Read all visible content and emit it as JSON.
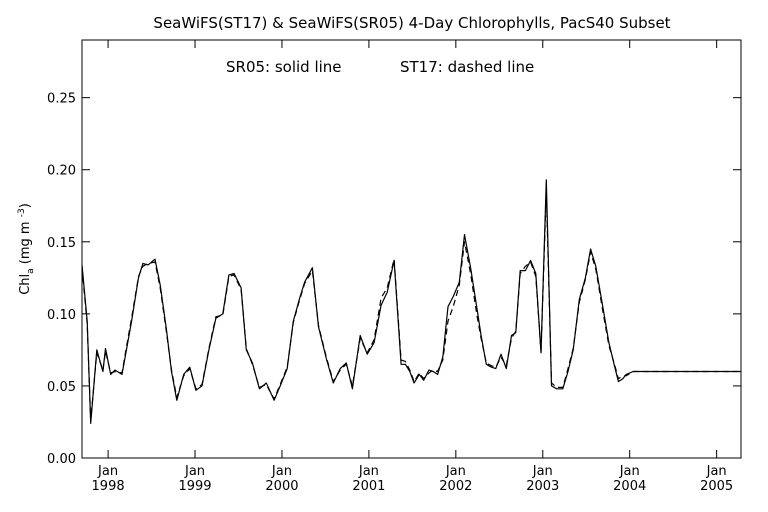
{
  "chart_data": {
    "type": "line",
    "title": "SeaWiFS(ST17) & SeaWiFS(SR05) 4-Day Chlorophylls, PacS40 Subset",
    "annotation_left": "SR05: solid line",
    "annotation_right": "ST17: dashed line",
    "ylabel": "Chl_a (mg m^-3)",
    "ylabel_parts": {
      "main": "Chl",
      "sub": "a",
      "unit": "(mg m",
      "sup": "-3",
      "close": ")"
    },
    "xlim": [
      1997.7,
      2005.28
    ],
    "ylim": [
      0.0,
      0.29
    ],
    "y_ticks": [
      0.0,
      0.05,
      0.1,
      0.15,
      0.2,
      0.25
    ],
    "y_tick_labels": [
      "0.00",
      "0.05",
      "0.10",
      "0.15",
      "0.20",
      "0.25"
    ],
    "x_ticks": [
      {
        "value": 1998,
        "month": "Jan",
        "year": "1998"
      },
      {
        "value": 1999,
        "month": "Jan",
        "year": "1999"
      },
      {
        "value": 2000,
        "month": "Jan",
        "year": "2000"
      },
      {
        "value": 2001,
        "month": "Jan",
        "year": "2001"
      },
      {
        "value": 2002,
        "month": "Jan",
        "year": "2002"
      },
      {
        "value": 2003,
        "month": "Jan",
        "year": "2003"
      },
      {
        "value": 2004,
        "month": "Jan",
        "year": "2004"
      },
      {
        "value": 2005,
        "month": "Jan",
        "year": "2005"
      }
    ],
    "grid": false,
    "legend": "none",
    "series": [
      {
        "label": "SR05",
        "style": "solid",
        "x": [
          1997.7,
          1997.76,
          1997.8,
          1997.87,
          1997.94,
          1997.97,
          1998.03,
          1998.08,
          1998.16,
          1998.22,
          1998.27,
          1998.35,
          1998.4,
          1998.46,
          1998.54,
          1998.6,
          1998.67,
          1998.73,
          1998.79,
          1998.87,
          1998.94,
          1999.01,
          1999.08,
          1999.16,
          1999.24,
          1999.32,
          1999.39,
          1999.45,
          1999.53,
          1999.59,
          1999.66,
          1999.74,
          1999.82,
          1999.91,
          1999.98,
          2000.06,
          2000.13,
          2000.2,
          2000.26,
          2000.35,
          2000.42,
          2000.51,
          2000.59,
          2000.67,
          2000.74,
          2000.81,
          2000.9,
          2000.98,
          2001.06,
          2001.14,
          2001.21,
          2001.29,
          2001.37,
          2001.42,
          2001.47,
          2001.52,
          2001.58,
          2001.63,
          2001.69,
          2001.74,
          2001.79,
          2001.85,
          2001.91,
          2001.97,
          2002.04,
          2002.1,
          2002.17,
          2002.24,
          2002.29,
          2002.35,
          2002.41,
          2002.46,
          2002.52,
          2002.58,
          2002.64,
          2002.69,
          2002.74,
          2002.8,
          2002.86,
          2002.92,
          2002.98,
          2003.04,
          2003.1,
          2003.16,
          2003.23,
          2003.29,
          2003.35,
          2003.42,
          2003.49,
          2003.55,
          2003.61,
          2003.69,
          2003.76,
          2003.82,
          2003.87,
          2003.92,
          2003.96,
          2004.04,
          2004.11,
          2004.17,
          2004.23,
          2004.28,
          2004.35,
          2004.43,
          2004.5,
          2004.57,
          2004.64,
          2004.72,
          2004.79,
          2004.85,
          2004.9,
          2004.95,
          2005.01,
          2005.07,
          2005.13,
          2005.2,
          2005.28
        ],
        "y": [
          0.134,
          0.095,
          0.024,
          0.075,
          0.06,
          0.076,
          0.058,
          0.061,
          0.058,
          0.078,
          0.095,
          0.125,
          0.135,
          0.134,
          0.138,
          0.12,
          0.09,
          0.06,
          0.04,
          0.058,
          0.063,
          0.047,
          0.05,
          0.075,
          0.097,
          0.1,
          0.127,
          0.128,
          0.118,
          0.075,
          0.066,
          0.048,
          0.052,
          0.04,
          0.05,
          0.062,
          0.095,
          0.11,
          0.122,
          0.132,
          0.091,
          0.069,
          0.052,
          0.062,
          0.066,
          0.048,
          0.085,
          0.072,
          0.08,
          0.106,
          0.115,
          0.137,
          0.065,
          0.065,
          0.06,
          0.052,
          0.058,
          0.054,
          0.061,
          0.06,
          0.058,
          0.07,
          0.105,
          0.112,
          0.122,
          0.155,
          0.132,
          0.105,
          0.085,
          0.065,
          0.063,
          0.062,
          0.072,
          0.062,
          0.085,
          0.087,
          0.13,
          0.13,
          0.137,
          0.128,
          0.073,
          0.193,
          0.05,
          0.048,
          0.048,
          0.06,
          0.075,
          0.11,
          0.125,
          0.145,
          0.133,
          0.105,
          0.08,
          0.065,
          0.053,
          0.055,
          0.058,
          0.06,
          0.06,
          0.06,
          0.06,
          0.06,
          0.06,
          0.06,
          0.06,
          0.06,
          0.06,
          0.06,
          0.06,
          0.06,
          0.06,
          0.06,
          0.06,
          0.06,
          0.06,
          0.06,
          0.06
        ]
      },
      {
        "label": "ST17",
        "style": "dashed",
        "x": [
          1997.7,
          1997.76,
          1997.8,
          1997.87,
          1997.94,
          1997.97,
          1998.03,
          1998.08,
          1998.16,
          1998.22,
          1998.27,
          1998.35,
          1998.4,
          1998.46,
          1998.54,
          1998.6,
          1998.67,
          1998.73,
          1998.79,
          1998.87,
          1998.94,
          1999.01,
          1999.08,
          1999.16,
          1999.24,
          1999.32,
          1999.39,
          1999.45,
          1999.53,
          1999.59,
          1999.66,
          1999.74,
          1999.82,
          1999.91,
          1999.98,
          2000.06,
          2000.13,
          2000.2,
          2000.26,
          2000.35,
          2000.42,
          2000.51,
          2000.59,
          2000.67,
          2000.74,
          2000.81,
          2000.9,
          2000.98,
          2001.06,
          2001.14,
          2001.21,
          2001.29,
          2001.37,
          2001.42,
          2001.47,
          2001.52,
          2001.58,
          2001.63,
          2001.69,
          2001.74,
          2001.79,
          2001.85,
          2001.91,
          2001.97,
          2002.04,
          2002.1,
          2002.17,
          2002.24,
          2002.29,
          2002.35,
          2002.41,
          2002.46,
          2002.52,
          2002.58,
          2002.64,
          2002.69,
          2002.74,
          2002.8,
          2002.86,
          2002.92,
          2002.98,
          2003.04,
          2003.1,
          2003.16,
          2003.23,
          2003.29,
          2003.35,
          2003.42,
          2003.49,
          2003.55,
          2003.61,
          2003.69,
          2003.76,
          2003.82,
          2003.87,
          2003.92,
          2003.96,
          2004.04,
          2004.11,
          2004.17,
          2004.23,
          2004.28,
          2004.35,
          2004.43,
          2004.5,
          2004.57,
          2004.64,
          2004.72,
          2004.79,
          2004.85,
          2004.9,
          2004.95,
          2005.01,
          2005.07,
          2005.13,
          2005.2,
          2005.28
        ],
        "y": [
          0.132,
          0.093,
          0.026,
          0.073,
          0.061,
          0.074,
          0.059,
          0.06,
          0.059,
          0.08,
          0.097,
          0.126,
          0.133,
          0.135,
          0.136,
          0.118,
          0.088,
          0.061,
          0.042,
          0.057,
          0.062,
          0.048,
          0.051,
          0.076,
          0.098,
          0.099,
          0.126,
          0.127,
          0.117,
          0.076,
          0.065,
          0.049,
          0.051,
          0.041,
          0.051,
          0.063,
          0.094,
          0.109,
          0.121,
          0.13,
          0.092,
          0.07,
          0.053,
          0.061,
          0.065,
          0.05,
          0.083,
          0.073,
          0.082,
          0.111,
          0.118,
          0.138,
          0.068,
          0.067,
          0.061,
          0.053,
          0.059,
          0.055,
          0.059,
          0.061,
          0.06,
          0.068,
          0.095,
          0.105,
          0.12,
          0.15,
          0.128,
          0.1,
          0.083,
          0.066,
          0.064,
          0.063,
          0.07,
          0.064,
          0.083,
          0.088,
          0.128,
          0.133,
          0.136,
          0.126,
          0.074,
          0.185,
          0.052,
          0.049,
          0.049,
          0.062,
          0.076,
          0.108,
          0.124,
          0.143,
          0.131,
          0.102,
          0.078,
          0.066,
          0.055,
          0.057,
          0.057,
          0.06,
          0.06,
          0.06,
          0.06,
          0.06,
          0.06,
          0.06,
          0.06,
          0.06,
          0.06,
          0.06,
          0.06,
          0.06,
          0.06,
          0.06,
          0.06,
          0.06,
          0.06,
          0.06,
          0.06
        ]
      }
    ]
  }
}
